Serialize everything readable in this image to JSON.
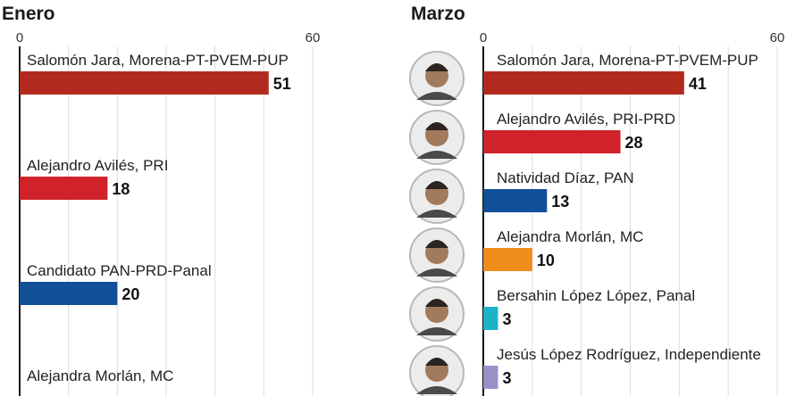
{
  "chart_data": [
    {
      "type": "bar",
      "title": "Enero",
      "xlim": [
        0,
        60
      ],
      "ticks": [
        "0",
        "60"
      ],
      "grid": true,
      "categories": [
        "Salomón Jara, Morena-PT-PVEM-PUP",
        "Alejandro Avilés, PRI",
        "Candidato PAN-PRD-Panal",
        "Alejandra Morlán, MC"
      ],
      "values": [
        51,
        18,
        20,
        null
      ],
      "value_labels": [
        "51",
        "18",
        "20",
        ""
      ],
      "colors": [
        "#b22a1e",
        "#d0222a",
        "#124f99",
        "#ef8c1a"
      ]
    },
    {
      "type": "bar",
      "title": "Marzo",
      "xlim": [
        0,
        60
      ],
      "ticks": [
        "0",
        "60"
      ],
      "grid": true,
      "categories": [
        "Salomón Jara, Morena-PT-PVEM-PUP",
        "Alejandro Avilés, PRI-PRD",
        "Natividad Díaz, PAN",
        "Alejandra Morlán, MC",
        "Bersahin López López, Panal",
        "Jesús López Rodríguez, Independiente"
      ],
      "values": [
        41,
        28,
        13,
        10,
        3,
        3
      ],
      "value_labels": [
        "41",
        "28",
        "13",
        "10",
        "3",
        "3"
      ],
      "colors": [
        "#b22a1e",
        "#d0222a",
        "#124f99",
        "#ef8c1a",
        "#1bb3c7",
        "#9b8fc8"
      ],
      "portraits": [
        "portrait-icon",
        "portrait-icon",
        "portrait-icon",
        "portrait-icon",
        "portrait-icon",
        "portrait-icon"
      ]
    }
  ]
}
